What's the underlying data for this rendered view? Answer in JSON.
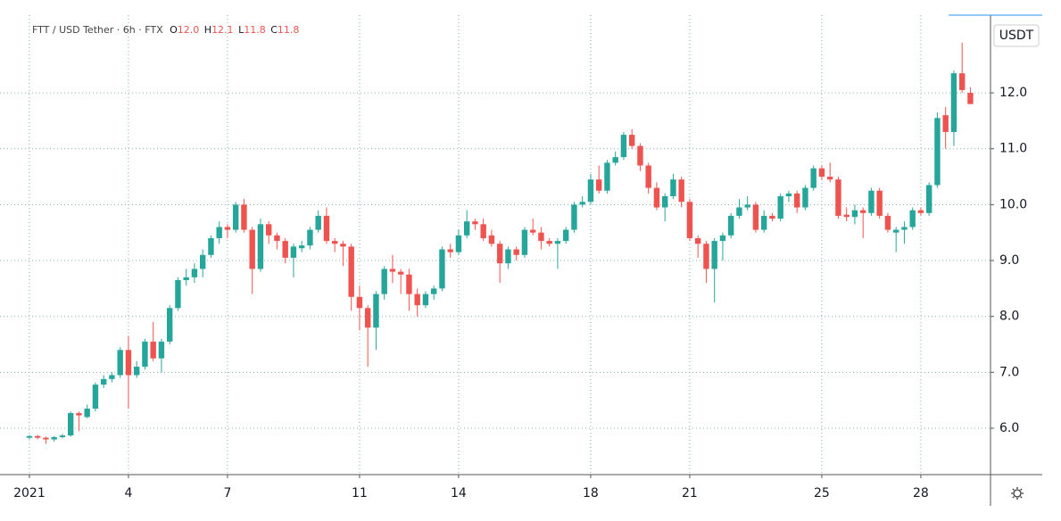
{
  "chart_data": {
    "type": "candlestick",
    "header": {
      "symbol": "FTT / USD Tether · 6h · FTX",
      "o_label": "O",
      "o": "12.0",
      "h_label": "H",
      "h": "12.1",
      "l_label": "L",
      "l": "11.8",
      "c_label": "C",
      "c": "11.8"
    },
    "currency": "USDT",
    "up_color": "#26a69a",
    "down_color": "#ef5350",
    "grid": true,
    "xlim": [
      0.11,
      30.11
    ],
    "xticks": [
      {
        "value": 1,
        "label": "2021"
      },
      4,
      7,
      11,
      14,
      18,
      21,
      25,
      28
    ],
    "ylim": [
      5.17,
      13.39
    ],
    "yticks": [
      {
        "value": 6,
        "label": "6.0"
      },
      {
        "value": 7,
        "label": "7.0"
      },
      {
        "value": 8,
        "label": "8.0"
      },
      {
        "value": 9,
        "label": "9.0"
      },
      {
        "value": 10,
        "label": "10.0"
      },
      {
        "value": 11,
        "label": "11.0"
      },
      {
        "value": 12,
        "label": "12.0"
      }
    ],
    "x": [
      1,
      1.25,
      1.5,
      1.75,
      2,
      2.25,
      2.5,
      2.75,
      3,
      3.25,
      3.5,
      3.75,
      4,
      4.25,
      4.5,
      4.75,
      5,
      5.25,
      5.5,
      5.75,
      6,
      6.25,
      6.5,
      6.75,
      7,
      7.25,
      7.5,
      7.75,
      8,
      8.25,
      8.5,
      8.75,
      9,
      9.25,
      9.5,
      9.75,
      10,
      10.25,
      10.5,
      10.75,
      11,
      11.25,
      11.5,
      11.75,
      12,
      12.25,
      12.5,
      12.75,
      13,
      13.25,
      13.5,
      13.75,
      14,
      14.25,
      14.5,
      14.75,
      15,
      15.25,
      15.5,
      15.75,
      16,
      16.25,
      16.5,
      16.75,
      17,
      17.25,
      17.5,
      17.75,
      18,
      18.25,
      18.5,
      18.75,
      19,
      19.25,
      19.5,
      19.75,
      20,
      20.25,
      20.5,
      20.75,
      21,
      21.25,
      21.5,
      21.75,
      22,
      22.25,
      22.5,
      22.75,
      23,
      23.25,
      23.5,
      23.75,
      24,
      24.25,
      24.5,
      24.75,
      25,
      25.25,
      25.5,
      25.75,
      26,
      26.25,
      26.5,
      26.75,
      27,
      27.25,
      27.5,
      27.75,
      28,
      28.25,
      28.5,
      28.75,
      29,
      29.25,
      29.5
    ],
    "open": [
      5.83,
      5.86,
      5.83,
      5.8,
      5.84,
      5.87,
      6.27,
      6.2,
      6.35,
      6.78,
      6.88,
      6.95,
      7.4,
      6.95,
      7.1,
      7.55,
      7.25,
      7.55,
      8.15,
      8.65,
      8.7,
      8.85,
      9.1,
      9.4,
      9.6,
      9.55,
      10.0,
      9.55,
      8.85,
      9.65,
      9.45,
      9.35,
      9.05,
      9.22,
      9.27,
      9.55,
      9.8,
      9.35,
      9.3,
      9.25,
      8.35,
      8.15,
      7.8,
      8.4,
      8.85,
      8.8,
      8.75,
      8.4,
      8.2,
      8.4,
      8.5,
      9.2,
      9.15,
      9.45,
      9.7,
      9.65,
      9.45,
      9.3,
      8.95,
      9.2,
      9.1,
      9.55,
      9.5,
      9.35,
      9.3,
      9.35,
      9.55,
      10.0,
      10.05,
      10.45,
      10.25,
      10.75,
      10.85,
      11.25,
      11.05,
      10.7,
      10.3,
      9.95,
      10.15,
      10.45,
      10.05,
      9.4,
      9.3,
      8.85,
      9.35,
      9.45,
      9.8,
      9.95,
      10.0,
      9.55,
      9.8,
      9.75,
      10.15,
      10.2,
      9.95,
      10.3,
      10.65,
      10.5,
      10.45,
      9.82,
      9.78,
      9.9,
      9.85,
      10.25,
      9.8,
      9.5,
      9.55,
      9.6,
      9.9,
      9.85,
      10.35,
      11.6,
      11.3,
      12.35,
      12.0
    ],
    "high": [
      5.88,
      5.88,
      5.85,
      5.86,
      5.9,
      6.3,
      6.3,
      6.42,
      6.82,
      6.95,
      7.0,
      7.45,
      7.65,
      7.2,
      7.6,
      7.9,
      7.6,
      8.2,
      8.7,
      8.85,
      8.95,
      9.2,
      9.45,
      9.7,
      9.65,
      10.05,
      10.1,
      9.6,
      9.75,
      9.7,
      9.5,
      9.4,
      9.3,
      9.35,
      9.6,
      9.9,
      9.95,
      9.4,
      9.35,
      9.3,
      8.55,
      8.2,
      8.45,
      8.9,
      9.1,
      8.85,
      8.85,
      8.5,
      8.45,
      8.55,
      9.25,
      9.3,
      9.55,
      9.9,
      9.75,
      9.75,
      9.55,
      9.35,
      9.25,
      9.25,
      9.6,
      9.75,
      9.6,
      9.4,
      9.4,
      9.6,
      10.05,
      10.15,
      10.55,
      10.7,
      10.8,
      10.95,
      11.3,
      11.35,
      11.1,
      10.75,
      10.4,
      10.2,
      10.55,
      10.5,
      10.1,
      9.45,
      9.35,
      9.4,
      9.5,
      9.85,
      10.1,
      10.15,
      10.05,
      9.9,
      9.85,
      10.2,
      10.25,
      10.25,
      10.35,
      10.7,
      10.7,
      10.75,
      10.5,
      9.95,
      10.0,
      9.95,
      10.3,
      10.3,
      9.85,
      9.6,
      9.7,
      9.95,
      9.95,
      10.4,
      11.65,
      11.75,
      12.4,
      12.9,
      12.1
    ],
    "low": [
      5.8,
      5.8,
      5.72,
      5.76,
      5.82,
      5.85,
      5.95,
      6.18,
      6.3,
      6.72,
      6.82,
      6.9,
      6.35,
      6.9,
      7.05,
      7.2,
      7.0,
      7.5,
      8.1,
      8.55,
      8.6,
      8.7,
      9.05,
      9.3,
      9.4,
      9.5,
      9.5,
      8.4,
      8.8,
      9.3,
      9.2,
      8.95,
      8.7,
      9.15,
      9.2,
      9.5,
      9.3,
      9.15,
      8.9,
      8.1,
      7.75,
      7.1,
      7.4,
      8.3,
      8.6,
      8.4,
      8.1,
      8.0,
      8.15,
      8.3,
      8.45,
      9.05,
      9.1,
      9.4,
      9.55,
      9.35,
      9.25,
      8.6,
      8.85,
      9.0,
      9.05,
      9.45,
      9.2,
      9.25,
      8.85,
      9.3,
      9.5,
      9.95,
      10.0,
      10.2,
      10.2,
      10.7,
      10.8,
      11.0,
      10.6,
      10.2,
      9.9,
      9.7,
      10.1,
      9.95,
      9.35,
      9.05,
      8.6,
      8.25,
      9.0,
      9.4,
      9.75,
      9.9,
      9.5,
      9.5,
      9.7,
      9.7,
      10.05,
      9.85,
      9.9,
      10.25,
      10.45,
      10.4,
      9.75,
      9.7,
      9.65,
      9.4,
      9.8,
      9.75,
      9.5,
      9.15,
      9.3,
      9.55,
      9.8,
      9.8,
      10.3,
      11.0,
      11.05,
      12.0,
      11.8
    ],
    "close": [
      5.86,
      5.83,
      5.8,
      5.84,
      5.87,
      6.27,
      6.23,
      6.35,
      6.78,
      6.88,
      6.95,
      7.4,
      6.95,
      7.1,
      7.55,
      7.25,
      7.55,
      8.15,
      8.65,
      8.7,
      8.85,
      9.1,
      9.4,
      9.6,
      9.55,
      10.0,
      9.55,
      8.85,
      9.65,
      9.45,
      9.35,
      9.05,
      9.25,
      9.27,
      9.55,
      9.8,
      9.35,
      9.3,
      9.25,
      8.35,
      8.15,
      7.8,
      8.4,
      8.85,
      8.8,
      8.75,
      8.4,
      8.2,
      8.4,
      8.5,
      9.2,
      9.15,
      9.45,
      9.7,
      9.65,
      9.4,
      9.3,
      8.95,
      9.2,
      9.1,
      9.55,
      9.5,
      9.35,
      9.3,
      9.35,
      9.55,
      10.0,
      10.05,
      10.45,
      10.25,
      10.75,
      10.85,
      11.25,
      11.05,
      10.7,
      10.3,
      9.95,
      10.15,
      10.45,
      10.05,
      9.4,
      9.3,
      8.85,
      9.35,
      9.45,
      9.8,
      9.95,
      10.0,
      9.55,
      9.8,
      9.75,
      10.15,
      10.2,
      9.95,
      10.3,
      10.65,
      10.5,
      10.45,
      9.8,
      9.78,
      9.9,
      9.85,
      10.25,
      9.8,
      9.55,
      9.55,
      9.6,
      9.9,
      9.85,
      10.35,
      11.55,
      11.3,
      12.35,
      12.05,
      11.8
    ]
  }
}
